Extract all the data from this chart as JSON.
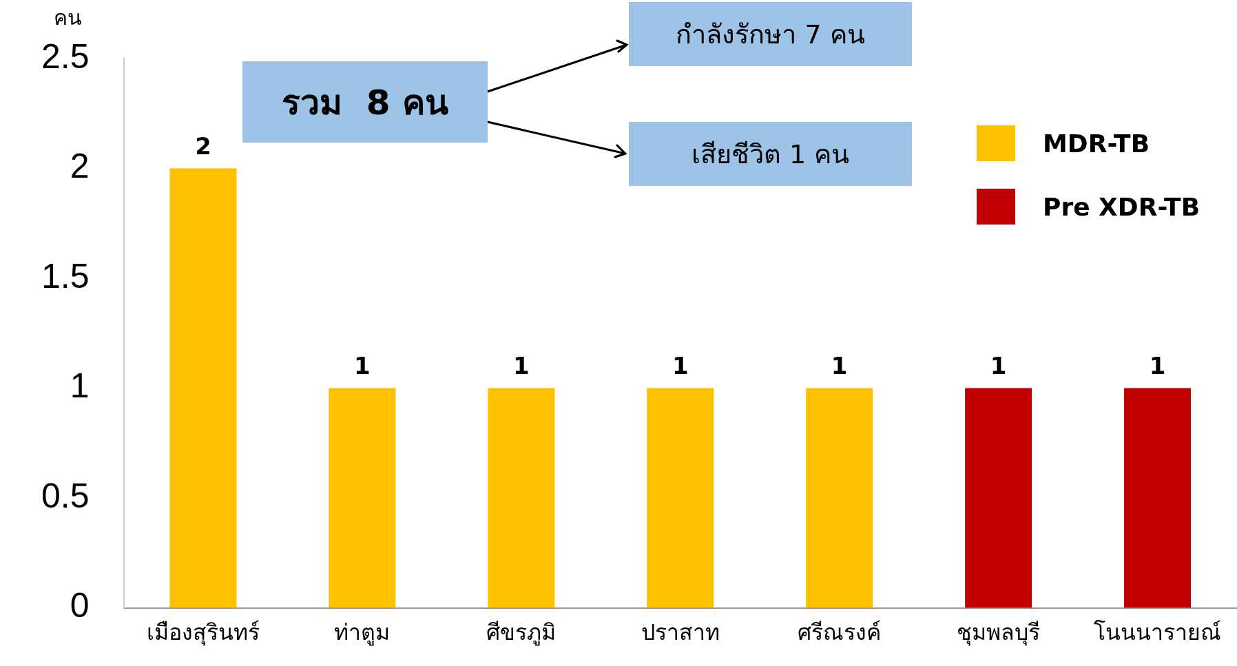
{
  "chart_data": {
    "type": "bar",
    "ylabel": "คน",
    "categories": [
      "เมืองสุรินทร์",
      "ท่าตูม",
      "ศีขรภูมิ",
      "ปราสาท",
      "ศรีณรงค์",
      "ชุมพลบุรี",
      "โนนนารายณ์"
    ],
    "series": [
      {
        "name": "MDR-TB",
        "color": "#ffc000",
        "values": [
          2,
          1,
          1,
          1,
          1,
          null,
          null
        ]
      },
      {
        "name": "Pre XDR-TB",
        "color": "#c00000",
        "values": [
          null,
          null,
          null,
          null,
          null,
          1,
          1
        ]
      }
    ],
    "ylim": [
      0,
      2.5
    ],
    "yticks": [
      0,
      0.5,
      1,
      1.5,
      2,
      2.5
    ],
    "data_labels": true,
    "grid": false,
    "legend": "top right",
    "annotations": [
      "รวม  8 คน",
      "กำลังรักษา 7 คน",
      "เสียชีวิต 1 คน"
    ]
  }
}
